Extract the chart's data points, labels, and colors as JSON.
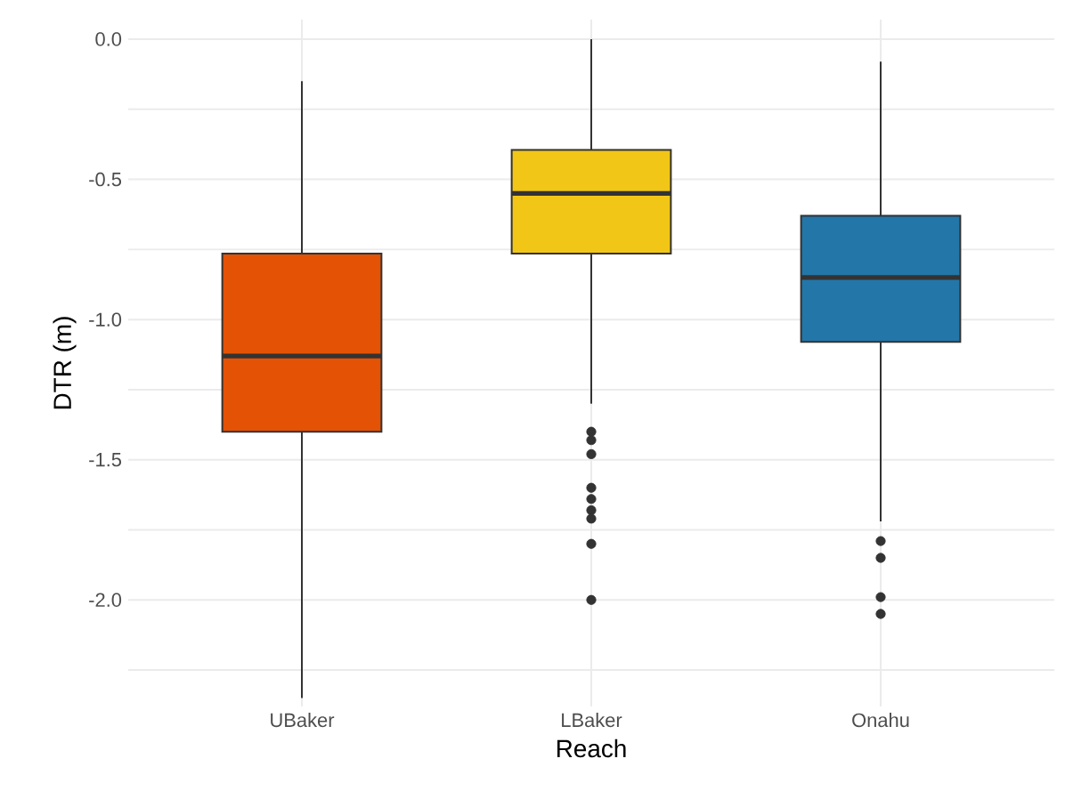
{
  "chart_data": {
    "type": "box",
    "xlabel": "Reach",
    "ylabel": "DTR (m)",
    "categories": [
      "UBaker",
      "LBaker",
      "Onahu"
    ],
    "colors": [
      "#e35205",
      "#f2c617",
      "#2376a8"
    ],
    "boxes": [
      {
        "low": -2.35,
        "q1": -1.4,
        "median": -1.13,
        "q3": -0.765,
        "high": -0.15
      },
      {
        "low": -1.3,
        "q1": -0.765,
        "median": -0.55,
        "q3": -0.395,
        "high": 0.0,
        "outliers": [
          -1.4,
          -1.43,
          -1.48,
          -1.6,
          -1.64,
          -1.68,
          -1.71,
          -1.8,
          -2.0
        ]
      },
      {
        "low": -1.72,
        "q1": -1.08,
        "median": -0.85,
        "q3": -0.63,
        "high": -0.08,
        "outliers": [
          -1.79,
          -1.85,
          -1.99,
          -2.05
        ]
      }
    ],
    "ylim": [
      -2.38,
      0.07
    ],
    "yticks": [
      {
        "value": -2.0,
        "label": "-2.0"
      },
      {
        "value": -1.5,
        "label": "-1.5"
      },
      {
        "value": -1.0,
        "label": "-1.0"
      },
      {
        "value": -0.5,
        "label": "-0.5"
      },
      {
        "value": 0.0,
        "label": "0.0"
      },
      {
        "value": -2.25,
        "label": null
      },
      {
        "value": -1.75,
        "label": null
      },
      {
        "value": -1.25,
        "label": null
      },
      {
        "value": -0.75,
        "label": null
      },
      {
        "value": -0.25,
        "label": null
      }
    ],
    "grid": true
  }
}
